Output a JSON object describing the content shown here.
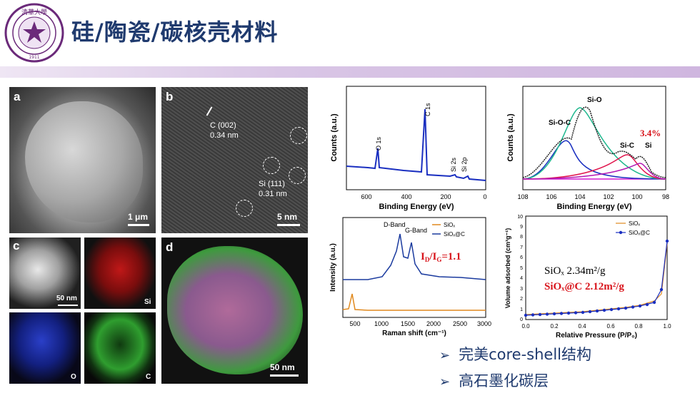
{
  "header": {
    "title": "硅/陶瓷/碳核壳材料"
  },
  "logo": {
    "text_cn": "清华大学",
    "text_en": "TSINGHUA UNIVERSITY",
    "year": "1911"
  },
  "panels": {
    "a": {
      "label": "a",
      "scale": "1 μm"
    },
    "b": {
      "label": "b",
      "scale": "5 nm",
      "ann1": "C (002)",
      "ann1b": "0.34 nm",
      "ann2": "Si (111)",
      "ann2b": "0.31 nm"
    },
    "c": {
      "label": "c",
      "scale": "50 nm",
      "si": "Si",
      "o": "O",
      "c": "C"
    },
    "d": {
      "label": "d",
      "scale": "50 nm"
    }
  },
  "xps_survey": {
    "ylabel": "Counts (a.u.)",
    "xlabel": "Binding Energy (eV)",
    "ticks": [
      "600",
      "400",
      "200",
      "0"
    ],
    "peaks": [
      "O 1s",
      "C 1s",
      "Si 2s",
      "Si 2p"
    ]
  },
  "xps_si2p": {
    "ylabel": "Counts (a.u.)",
    "xlabel": "Binding Energy (eV)",
    "ticks": [
      "108",
      "106",
      "104",
      "102",
      "100",
      "98"
    ],
    "labels": [
      "Si-O-C",
      "Si-O",
      "Si-C",
      "Si"
    ],
    "percent": "3.4%"
  },
  "raman": {
    "ylabel": "Intensity (a.u.)",
    "xlabel": "Raman shift (cm⁻¹)",
    "ticks": [
      "500",
      "1000",
      "1500",
      "2000",
      "2500",
      "3000"
    ],
    "dband": "D-Band",
    "gband": "G-Band",
    "ratio": "I",
    "ratio_d": "D",
    "ratio_mid": "/I",
    "ratio_g": "G",
    "ratio_val": "=1.1",
    "legend": [
      "SiOₓ",
      "SiOₓ@C"
    ]
  },
  "bet": {
    "ylabel": "Volume adsorbed (cm³g⁻¹)",
    "xlabel": "Relative Pressure (P/P₀)",
    "xticks": [
      "0.0",
      "0.2",
      "0.4",
      "0.6",
      "0.8",
      "1.0"
    ],
    "yticks": [
      "0",
      "1",
      "2",
      "3",
      "4",
      "5",
      "6",
      "7",
      "8",
      "9",
      "10"
    ],
    "legend": [
      "SiOₓ",
      "SiOₓ@C"
    ],
    "area1": "SiOₓ 2.34m²/g",
    "area2": "SiOₓ@C 2.12m²/g"
  },
  "bullets": [
    "完美core-shell结构",
    "高石墨化碳层"
  ],
  "colors": {
    "title": "#1f3a6e",
    "xps_line": "#1a2fc0",
    "raman_siox": "#e0891e",
    "raman_sioxc": "#1a3a9e",
    "highlight": "#d8141b",
    "logo": "#6b2a7a"
  }
}
